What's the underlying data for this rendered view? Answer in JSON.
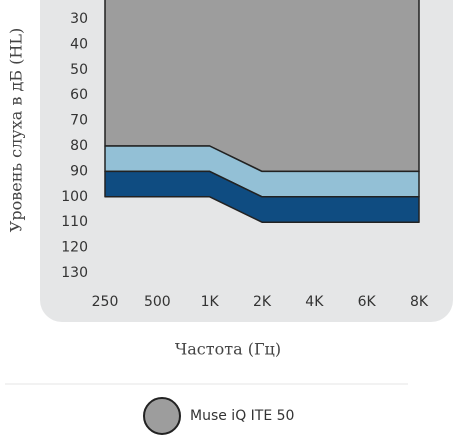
{
  "chart_data": {
    "type": "band",
    "y_label": "Уровень слуха в дБ (HL)",
    "x_label": "Частота (Гц)",
    "categories": [
      "250",
      "500",
      "1K",
      "2K",
      "4K",
      "6K",
      "8K"
    ],
    "ylim": [
      20,
      130
    ],
    "yticks": [
      30,
      40,
      50,
      60,
      70,
      80,
      90,
      100,
      110,
      120,
      130
    ],
    "inverted": true,
    "bands": [
      {
        "color": "#9d9d9d",
        "values": [
          80,
          80,
          80,
          90,
          90,
          90,
          90
        ]
      },
      {
        "color": "#93c0d6",
        "values": [
          90,
          90,
          90,
          100,
          100,
          100,
          100
        ]
      },
      {
        "color": "#0f4c81",
        "values": [
          100,
          100,
          100,
          110,
          110,
          110,
          110
        ]
      }
    ],
    "legend": [
      {
        "name": "Muse iQ ITE 50",
        "color": "#9d9d9d"
      }
    ]
  }
}
